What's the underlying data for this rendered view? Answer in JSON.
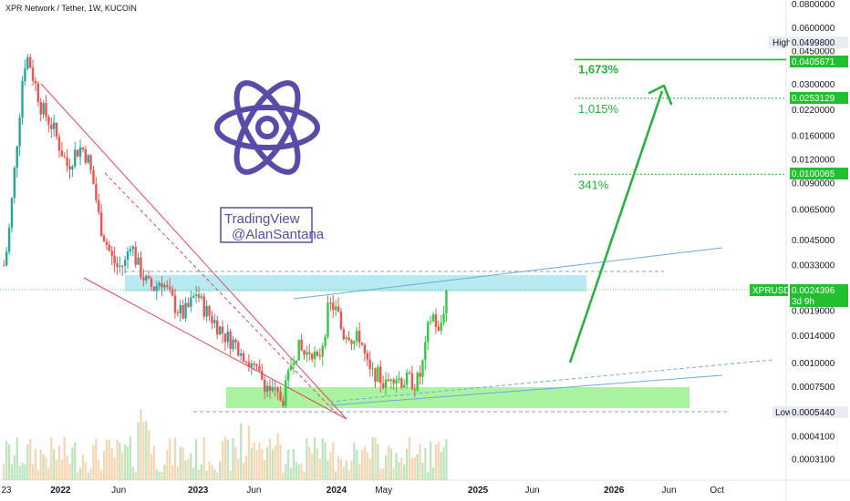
{
  "header": {
    "title": "XPR Network / Tether, 1W, KUCOIN"
  },
  "colors": {
    "up": "#26a69a",
    "up_bright": "#2ecc40",
    "down": "#ef5350",
    "target": "#22b33a",
    "resistance_zone": "#7fd8e8",
    "support_zone": "#7ded6f",
    "trend_red": "#e8475a",
    "trend_blue": "#6fa8dc",
    "atom": "#5b4aa8",
    "price_tag": "#22c02e"
  },
  "watermark": {
    "line1": "TradingView",
    "line2": "@AlanSantana",
    "icon": "atom-icon"
  },
  "annotations": [
    {
      "label": "1,673%",
      "level": 0.0405671,
      "bold": true
    },
    {
      "label": "1,015%",
      "level": 0.0253129,
      "bold": false
    },
    {
      "label": "341%",
      "level": 0.0100065,
      "bold": false
    }
  ],
  "price_tags": {
    "high": {
      "label": "High",
      "value": "0.0499800"
    },
    "t1": {
      "value": "0.0405671"
    },
    "t2": {
      "value": "0.0253129"
    },
    "t3": {
      "value": "0.0100065"
    },
    "current": {
      "symbol": "XPRUSDT",
      "value": "0.0024396",
      "countdown": "3d 9h"
    },
    "low": {
      "label": "Low",
      "value": "0.0005440"
    }
  },
  "chart_data": {
    "type": "candlestick",
    "title": "XPR Network / Tether, 1W, KUCOIN",
    "y_scale": "log",
    "ylim": [
      0.00024,
      0.084
    ],
    "y_ticks": [
      "0.0800000",
      "0.0600000",
      "0.0450000",
      "0.0300000",
      "0.0220000",
      "0.0160000",
      "0.0120000",
      "0.0090000",
      "0.0065000",
      "0.0045000",
      "0.0033000",
      "0.0019000",
      "0.0014000",
      "0.0010000",
      "0.0007500",
      "0.0004100",
      "0.0003100"
    ],
    "x_ticks": [
      "23",
      "2022",
      "Jun",
      "2023",
      "Jun",
      "2024",
      "May",
      "2025",
      "Jun",
      "2026",
      "Jun",
      "Oct"
    ],
    "x_tick_pos": [
      0.008,
      0.077,
      0.151,
      0.252,
      0.323,
      0.428,
      0.488,
      0.608,
      0.677,
      0.781,
      0.851,
      0.912
    ],
    "candle_path": [
      [
        0.005,
        0.0033
      ],
      [
        0.01,
        0.0043
      ],
      [
        0.016,
        0.008
      ],
      [
        0.021,
        0.014
      ],
      [
        0.026,
        0.024
      ],
      [
        0.03,
        0.038
      ],
      [
        0.036,
        0.042
      ],
      [
        0.042,
        0.033
      ],
      [
        0.047,
        0.028
      ],
      [
        0.052,
        0.023
      ],
      [
        0.06,
        0.02
      ],
      [
        0.068,
        0.0175
      ],
      [
        0.076,
        0.014
      ],
      [
        0.086,
        0.011
      ],
      [
        0.095,
        0.013
      ],
      [
        0.104,
        0.014
      ],
      [
        0.112,
        0.012
      ],
      [
        0.12,
        0.0085
      ],
      [
        0.127,
        0.0055
      ],
      [
        0.134,
        0.0045
      ],
      [
        0.142,
        0.0036
      ],
      [
        0.15,
        0.0032
      ],
      [
        0.159,
        0.0034
      ],
      [
        0.166,
        0.0045
      ],
      [
        0.172,
        0.0036
      ],
      [
        0.18,
        0.003
      ],
      [
        0.188,
        0.0026
      ],
      [
        0.197,
        0.0025
      ],
      [
        0.205,
        0.0028
      ],
      [
        0.213,
        0.0024
      ],
      [
        0.223,
        0.002
      ],
      [
        0.232,
        0.0018
      ],
      [
        0.241,
        0.002
      ],
      [
        0.25,
        0.0024
      ],
      [
        0.258,
        0.002
      ],
      [
        0.266,
        0.0018
      ],
      [
        0.276,
        0.0016
      ],
      [
        0.286,
        0.0014
      ],
      [
        0.296,
        0.0013
      ],
      [
        0.306,
        0.0012
      ],
      [
        0.316,
        0.001
      ],
      [
        0.326,
        0.0009
      ],
      [
        0.336,
        0.0008
      ],
      [
        0.346,
        0.0007
      ],
      [
        0.354,
        0.00066
      ],
      [
        0.36,
        0.00065
      ],
      [
        0.366,
        0.0008
      ],
      [
        0.372,
        0.0011
      ],
      [
        0.38,
        0.0012
      ],
      [
        0.388,
        0.0011
      ],
      [
        0.396,
        0.0012
      ],
      [
        0.404,
        0.001
      ],
      [
        0.412,
        0.0014
      ],
      [
        0.418,
        0.002
      ],
      [
        0.424,
        0.002
      ],
      [
        0.43,
        0.0018
      ],
      [
        0.436,
        0.0014
      ],
      [
        0.442,
        0.0015
      ],
      [
        0.45,
        0.0013
      ],
      [
        0.458,
        0.0014
      ],
      [
        0.466,
        0.001
      ],
      [
        0.472,
        0.00085
      ],
      [
        0.478,
        0.0009
      ],
      [
        0.486,
        0.0008
      ],
      [
        0.492,
        0.00075
      ],
      [
        0.498,
        0.0009
      ],
      [
        0.504,
        0.00085
      ],
      [
        0.512,
        0.0008
      ],
      [
        0.52,
        0.00082
      ],
      [
        0.528,
        0.00078
      ],
      [
        0.534,
        0.00085
      ],
      [
        0.54,
        0.0011
      ],
      [
        0.546,
        0.0017
      ],
      [
        0.552,
        0.0018
      ],
      [
        0.558,
        0.0014
      ],
      [
        0.563,
        0.0018
      ],
      [
        0.568,
        0.00244
      ]
    ],
    "last_price": 0.0024396,
    "period_high": 0.04998,
    "period_low": 0.000544,
    "targets": [
      {
        "label": "1,673%",
        "value": 0.0405671
      },
      {
        "label": "1,015%",
        "value": 0.0253129
      },
      {
        "label": "341%",
        "value": 0.0100065
      }
    ],
    "zones": [
      {
        "name": "resistance",
        "from": 0.0021,
        "to": 0.0029
      },
      {
        "name": "support",
        "from": 0.00056,
        "to": 0.00072
      }
    ],
    "grid": false
  }
}
